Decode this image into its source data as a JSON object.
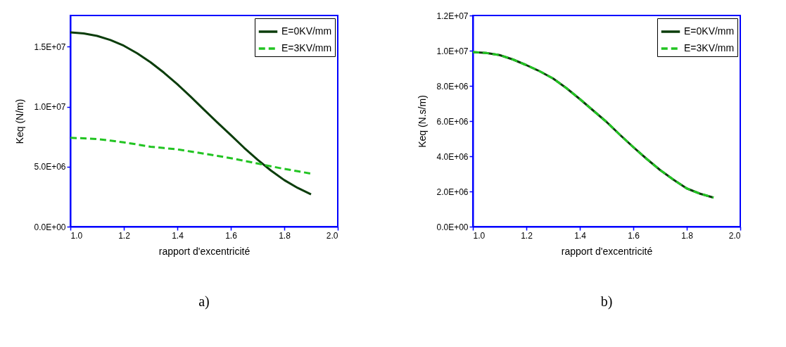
{
  "chart_data": [
    {
      "type": "line",
      "xlabel": "rapport d'excentricité",
      "ylabel": "Keq (N/m)",
      "annotations": [
        "a)"
      ],
      "legend": "top right",
      "grid": false,
      "marker": "none",
      "x": [
        1.0,
        1.05,
        1.1,
        1.15,
        1.2,
        1.25,
        1.3,
        1.35,
        1.4,
        1.45,
        1.5,
        1.55,
        1.6,
        1.65,
        1.7,
        1.75,
        1.8,
        1.85,
        1.9
      ],
      "xlim": [
        1.0,
        2.0
      ],
      "xticks": [
        {
          "value": 1.0,
          "label": "1.0"
        },
        {
          "value": 1.2,
          "label": "1.2"
        },
        {
          "value": 1.4,
          "label": "1.4"
        },
        {
          "value": 1.6,
          "label": "1.6"
        },
        {
          "value": 1.8,
          "label": "1.8"
        },
        {
          "value": 2.0,
          "label": "2.0"
        }
      ],
      "ylim": [
        0,
        17600000
      ],
      "yticks": [
        {
          "value": 0,
          "label": "0.0E+00"
        },
        {
          "value": 5000000,
          "label": "5.0E+06"
        },
        {
          "value": 10000000,
          "label": "1.0E+07"
        },
        {
          "value": 15000000,
          "label": "1.5E+07"
        }
      ],
      "series": [
        {
          "name": "E=0KV/mm",
          "color": "#0b3d0b",
          "line_style": "solid",
          "values": [
            16190000,
            16100000,
            15900000,
            15550000,
            15080000,
            14450000,
            13700000,
            12830000,
            11870000,
            10830000,
            9750000,
            8680000,
            7630000,
            6570000,
            5580000,
            4680000,
            3880000,
            3230000,
            2690000
          ]
        },
        {
          "name": "E=3KV/mm",
          "color": "#22c422",
          "line_style": "dashed",
          "values": [
            7400000,
            7360000,
            7300000,
            7170000,
            7020000,
            6850000,
            6660000,
            6550000,
            6440000,
            6260000,
            6080000,
            5900000,
            5710000,
            5490000,
            5260000,
            5030000,
            4810000,
            4620000,
            4420000
          ]
        }
      ]
    },
    {
      "type": "line",
      "xlabel": "rapport d'excentricité",
      "ylabel": "Keq (N.s/m)",
      "annotations": [
        "b)"
      ],
      "legend": "top right",
      "grid": false,
      "marker": "none",
      "x": [
        1.0,
        1.05,
        1.1,
        1.15,
        1.2,
        1.25,
        1.3,
        1.35,
        1.4,
        1.45,
        1.5,
        1.55,
        1.6,
        1.65,
        1.7,
        1.75,
        1.8,
        1.85,
        1.9
      ],
      "xlim": [
        1.0,
        2.0
      ],
      "xticks": [
        {
          "value": 1.0,
          "label": "1.0"
        },
        {
          "value": 1.2,
          "label": "1.2"
        },
        {
          "value": 1.4,
          "label": "1.4"
        },
        {
          "value": 1.6,
          "label": "1.6"
        },
        {
          "value": 1.8,
          "label": "1.8"
        },
        {
          "value": 2.0,
          "label": "2.0"
        }
      ],
      "ylim": [
        0,
        12000000
      ],
      "yticks": [
        {
          "value": 0,
          "label": "0.0E+00"
        },
        {
          "value": 2000000,
          "label": "2.0E+06"
        },
        {
          "value": 4000000,
          "label": "4.0E+06"
        },
        {
          "value": 6000000,
          "label": "6.0E+06"
        },
        {
          "value": 8000000,
          "label": "8.0E+06"
        },
        {
          "value": 10000000,
          "label": "1.0E+07"
        },
        {
          "value": 12000000,
          "label": "1.2E+07"
        }
      ],
      "series": [
        {
          "name": "E=0KV/mm",
          "color": "#0b3d0b",
          "line_style": "solid",
          "values": [
            9920000,
            9870000,
            9750000,
            9500000,
            9180000,
            8830000,
            8420000,
            7870000,
            7250000,
            6600000,
            5950000,
            5220000,
            4520000,
            3850000,
            3220000,
            2670000,
            2170000,
            1870000,
            1650000
          ]
        },
        {
          "name": "E=3KV/mm",
          "color": "#22c422",
          "line_style": "dashed",
          "values": [
            9920000,
            9870000,
            9750000,
            9500000,
            9180000,
            8830000,
            8420000,
            7870000,
            7250000,
            6600000,
            5950000,
            5220000,
            4520000,
            3850000,
            3220000,
            2670000,
            2170000,
            1870000,
            1650000
          ]
        }
      ]
    }
  ]
}
